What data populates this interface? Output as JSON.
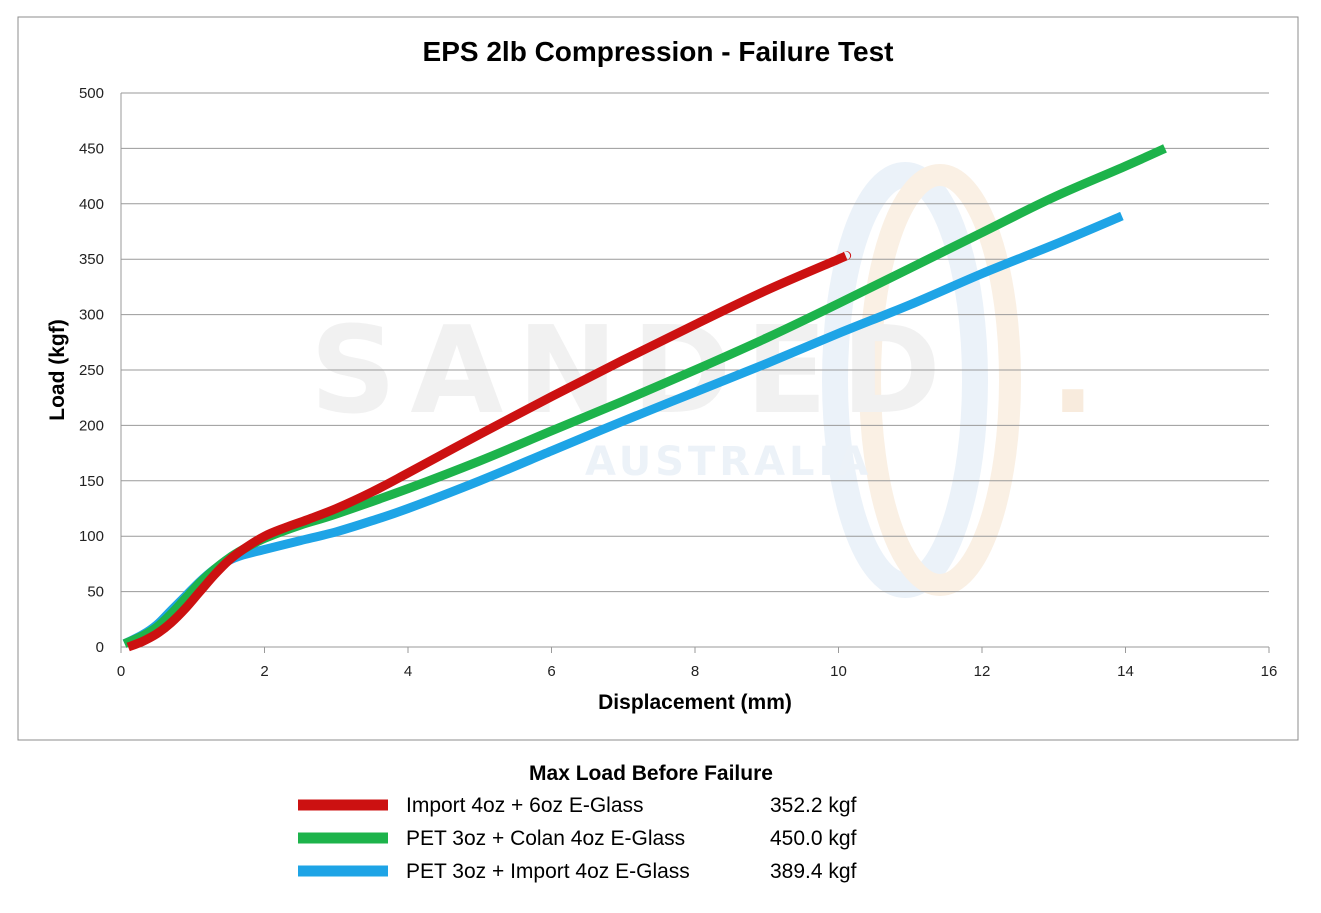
{
  "chart_data": {
    "type": "line",
    "title": "EPS 2lb Compression - Failure Test",
    "xlabel": "Displacement (mm)",
    "ylabel": "Load (kgf)",
    "xlim": [
      0,
      16
    ],
    "ylim": [
      0,
      500
    ],
    "x_ticks": [
      "0",
      "2",
      "4",
      "6",
      "8",
      "10",
      "12",
      "14",
      "16"
    ],
    "y_ticks": [
      "0",
      "50",
      "100",
      "150",
      "200",
      "250",
      "300",
      "350",
      "400",
      "450",
      "500"
    ],
    "grid": true,
    "series": [
      {
        "name": "Import 4oz + 6oz E-Glass",
        "max_load_label": "352.2 kgf",
        "color": "#cc1111",
        "x": [
          0.1,
          0.3,
          0.5,
          0.7,
          0.9,
          1.1,
          1.3,
          1.5,
          1.7,
          2.0,
          2.3,
          2.6,
          3.0,
          3.5,
          4.0,
          5.0,
          6.0,
          7.0,
          8.0,
          9.0,
          10.0,
          10.1
        ],
        "y": [
          0,
          5,
          12,
          22,
          35,
          50,
          65,
          78,
          88,
          100,
          108,
          115,
          125,
          140,
          157,
          192,
          226,
          259,
          291,
          322,
          350,
          353
        ]
      },
      {
        "name": "PET 3oz + Colan 4oz E-Glass",
        "max_load_label": "450.0 kgf",
        "color": "#1db34b",
        "x": [
          0.05,
          0.3,
          0.5,
          0.7,
          0.9,
          1.1,
          1.3,
          1.5,
          1.7,
          2.0,
          2.5,
          3.0,
          4.0,
          5.0,
          6.0,
          7.0,
          8.0,
          9.0,
          10.0,
          11.0,
          12.0,
          13.0,
          14.0,
          14.55
        ],
        "y": [
          3,
          10,
          18,
          30,
          44,
          58,
          70,
          80,
          88,
          98,
          110,
          120,
          143,
          168,
          195,
          222,
          250,
          279,
          310,
          342,
          374,
          406,
          434,
          450
        ]
      },
      {
        "name": "PET 3oz + Import 4oz E-Glass",
        "max_load_label": "389.4 kgf",
        "color": "#1ea4e6",
        "x": [
          0.05,
          0.3,
          0.5,
          0.7,
          0.9,
          1.1,
          1.3,
          1.5,
          1.7,
          2.0,
          2.5,
          3.0,
          3.5,
          4.0,
          5.0,
          6.0,
          7.0,
          8.0,
          9.0,
          10.0,
          11.0,
          12.0,
          13.0,
          13.95
        ],
        "y": [
          3,
          11,
          20,
          33,
          46,
          59,
          70,
          78,
          83,
          88,
          96,
          104,
          114,
          125,
          150,
          177,
          204,
          230,
          256,
          283,
          309,
          337,
          363,
          389
        ]
      }
    ],
    "legend_title": "Max Load Before Failure",
    "legend_position": "bottom"
  },
  "watermark": {
    "text": "SANDED",
    "dot": ".",
    "subtext": "AUSTRALIA"
  }
}
